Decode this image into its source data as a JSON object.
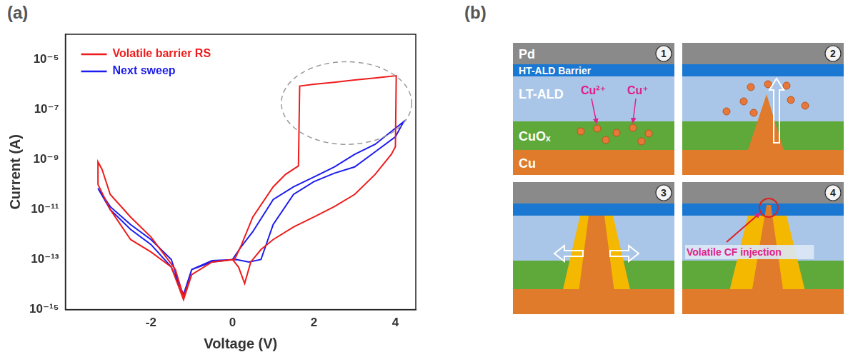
{
  "panel_labels": [
    "(a)",
    "(b)"
  ],
  "chart_data": {
    "type": "line",
    "x_label": "Voltage (V)",
    "y_label": "Current (A)",
    "log": "y",
    "grid": false,
    "legend": "upper left",
    "xlim": [
      -4.1,
      4.5
    ],
    "xticks": [
      -2,
      0,
      2,
      4
    ],
    "ylim": [
      1e-15,
      0.0001
    ],
    "yticks": [
      {
        "value": 1e-15,
        "label": "10⁻¹⁵"
      },
      {
        "value": 1e-13,
        "label": "10⁻¹³"
      },
      {
        "value": 1e-11,
        "label": "10⁻¹¹"
      },
      {
        "value": 1e-09,
        "label": "10⁻⁹"
      },
      {
        "value": 1e-07,
        "label": "10⁻⁷"
      },
      {
        "value": 1e-05,
        "label": "10⁻⁵"
      }
    ],
    "annotations": [
      {
        "shape": "ellipse",
        "x": [
          1.2,
          4.4
        ],
        "y": [
          4e-09,
          8e-06
        ],
        "line_style": "dashed"
      }
    ],
    "series": [
      {
        "name": "Volatile barrier RS",
        "color": "#ee1c1c",
        "x": [
          0.0,
          0.15,
          0.3,
          0.45,
          0.7,
          1.0,
          1.5,
          2.0,
          2.5,
          3.0,
          3.5,
          3.9,
          4.0,
          4.02,
          3.5,
          3.0,
          2.5,
          2.0,
          1.65,
          1.62,
          1.3,
          1.0,
          0.5,
          0.2,
          0.05,
          -0.5,
          -1.0,
          -1.2,
          -1.4,
          -2.0,
          -2.5,
          -3.0,
          -3.2,
          -3.3,
          -3.3,
          -3.0,
          -2.5,
          -2.0,
          -1.5,
          -1.2,
          -1.0,
          -0.5,
          0.0
        ],
        "values": [
          1e-13,
          5e-14,
          1.1e-14,
          8e-14,
          2.5e-13,
          6.3e-13,
          2e-12,
          5e-12,
          1.3e-11,
          4e-11,
          2.5e-10,
          1.6e-09,
          3.2e-09,
          2.2e-06,
          1.8e-06,
          1.5e-06,
          1.2e-06,
          1e-06,
          8.5e-07,
          5.5e-10,
          2.5e-10,
          8e-11,
          5e-12,
          3.2e-13,
          1e-13,
          8e-14,
          2.5e-14,
          3.2e-15,
          4e-14,
          8e-13,
          5e-12,
          4e-11,
          4e-10,
          8e-10,
          1e-10,
          1e-11,
          6.3e-13,
          2e-13,
          5e-14,
          2.5e-15,
          2.5e-14,
          8e-14,
          1e-13
        ]
      },
      {
        "name": "Next sweep",
        "color": "#1c1cee",
        "x": [
          0.0,
          0.2,
          0.5,
          1.0,
          1.5,
          2.0,
          2.5,
          3.0,
          3.5,
          4.2,
          4.0,
          3.5,
          3.0,
          2.5,
          2.0,
          1.5,
          1.0,
          0.7,
          0.4,
          0.1,
          -0.5,
          -1.0,
          -1.2,
          -1.5,
          -2.0,
          -2.5,
          -3.0,
          -3.3,
          -3.0,
          -2.5,
          -2.0,
          -1.5,
          -1.2,
          -1.0,
          -0.5,
          0.0
        ],
        "values": [
          1e-13,
          3e-13,
          1.3e-12,
          2.5e-11,
          8e-11,
          2e-10,
          5e-10,
          1.6e-09,
          4e-09,
          3.2e-08,
          8e-09,
          2e-09,
          5e-10,
          2.8e-10,
          1.3e-10,
          4e-11,
          2.5e-12,
          1e-13,
          8e-14,
          1e-13,
          9e-14,
          4e-14,
          3.2e-15,
          1e-13,
          6.3e-13,
          2.5e-12,
          1.3e-11,
          7e-11,
          1e-11,
          1.6e-12,
          4e-13,
          5e-14,
          4e-15,
          4e-14,
          8e-14,
          1e-13
        ]
      }
    ]
  },
  "diagram": {
    "layers": [
      "Pd",
      "HT-ALD  Barrier",
      "LT-ALD",
      "CuOₓ",
      "Cu"
    ],
    "ions": [
      "Cu²⁺",
      "Cu⁺"
    ],
    "steps": [
      "1",
      "2",
      "3",
      "4"
    ],
    "annotation": "Volatile CF injection"
  }
}
